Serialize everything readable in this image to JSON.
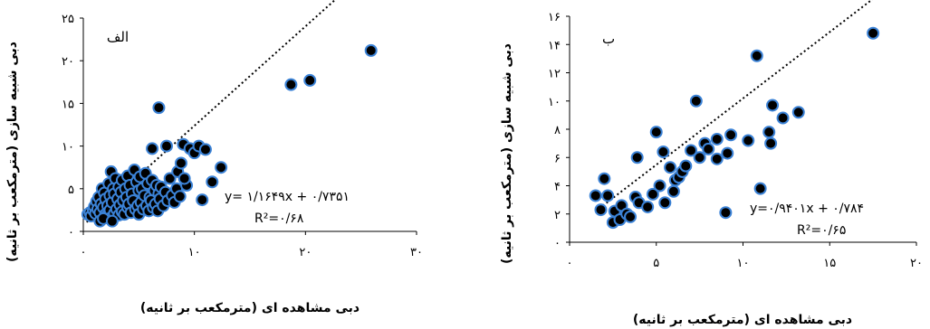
{
  "chart_data": [
    {
      "type": "scatter",
      "panel_label": "الف",
      "xlabel": "دبی مشاهده ای (مترمکعب بر ثانیه)",
      "ylabel": "دبی شبیه سازی (مترمکعب بر ثانیه)",
      "xlim": [
        0,
        30
      ],
      "ylim": [
        0,
        25
      ],
      "x_ticks": [
        0,
        10,
        20,
        30
      ],
      "y_ticks": [
        0,
        5,
        10,
        15,
        20,
        25
      ],
      "x_tick_labels": [
        "۰",
        "۱۰",
        "۲۰",
        "۳۰"
      ],
      "y_tick_labels": [
        "۰",
        "۵",
        "۱۰",
        "۱۵",
        "۲۰",
        "۲۵"
      ],
      "equation": "y= ۱/۱۶۴۹x + ۰/۷۳۵۱",
      "r2": "R²=۰/۶۸",
      "trendline": {
        "slope": 1.1649,
        "intercept": 0.7351,
        "x_range": [
          0.3,
          25.9
        ]
      },
      "points": [
        [
          0.4,
          2.0
        ],
        [
          0.6,
          2.2
        ],
        [
          0.7,
          1.8
        ],
        [
          0.9,
          2.5
        ],
        [
          1.0,
          2.9
        ],
        [
          1.1,
          2.1
        ],
        [
          1.2,
          3.5
        ],
        [
          1.3,
          2.6
        ],
        [
          1.4,
          4.0
        ],
        [
          1.5,
          2.2
        ],
        [
          1.6,
          3.2
        ],
        [
          1.7,
          5.0
        ],
        [
          1.8,
          2.8
        ],
        [
          1.9,
          4.5
        ],
        [
          2.0,
          2.0
        ],
        [
          2.0,
          3.8
        ],
        [
          2.1,
          1.8
        ],
        [
          2.2,
          3.0
        ],
        [
          2.3,
          5.6
        ],
        [
          2.4,
          2.5
        ],
        [
          2.4,
          4.2
        ],
        [
          2.5,
          7.0
        ],
        [
          2.5,
          1.6
        ],
        [
          2.6,
          3.4
        ],
        [
          2.7,
          5.0
        ],
        [
          2.8,
          2.1
        ],
        [
          2.8,
          4.4
        ],
        [
          2.9,
          6.2
        ],
        [
          3.0,
          2.6
        ],
        [
          3.1,
          3.8
        ],
        [
          3.2,
          1.9
        ],
        [
          3.2,
          5.2
        ],
        [
          3.3,
          3.1
        ],
        [
          3.4,
          4.6
        ],
        [
          3.5,
          2.3
        ],
        [
          3.5,
          6.0
        ],
        [
          3.6,
          3.6
        ],
        [
          3.7,
          2.0
        ],
        [
          3.8,
          5.0
        ],
        [
          3.9,
          4.0
        ],
        [
          4.0,
          2.8
        ],
        [
          4.0,
          6.5
        ],
        [
          4.1,
          3.2
        ],
        [
          4.2,
          5.4
        ],
        [
          4.3,
          2.2
        ],
        [
          4.4,
          4.4
        ],
        [
          4.5,
          3.6
        ],
        [
          4.6,
          7.2
        ],
        [
          4.7,
          2.6
        ],
        [
          4.8,
          5.8
        ],
        [
          4.9,
          3.0
        ],
        [
          5.0,
          4.8
        ],
        [
          5.0,
          2.0
        ],
        [
          5.1,
          6.4
        ],
        [
          5.2,
          3.4
        ],
        [
          5.3,
          5.0
        ],
        [
          5.4,
          2.6
        ],
        [
          5.5,
          4.2
        ],
        [
          5.6,
          6.8
        ],
        [
          5.7,
          3.0
        ],
        [
          5.8,
          5.6
        ],
        [
          5.9,
          2.4
        ],
        [
          6.0,
          4.0
        ],
        [
          6.1,
          3.6
        ],
        [
          6.2,
          6.0
        ],
        [
          6.3,
          2.8
        ],
        [
          6.4,
          4.8
        ],
        [
          6.5,
          3.2
        ],
        [
          6.6,
          5.4
        ],
        [
          6.7,
          2.4
        ],
        [
          6.8,
          4.4
        ],
        [
          6.9,
          3.8
        ],
        [
          7.0,
          5.2
        ],
        [
          7.2,
          3.0
        ],
        [
          7.4,
          4.6
        ],
        [
          7.6,
          3.6
        ],
        [
          7.8,
          6.2
        ],
        [
          8.0,
          4.2
        ],
        [
          8.2,
          3.4
        ],
        [
          8.4,
          5.0
        ],
        [
          6.2,
          9.7
        ],
        [
          6.8,
          14.5
        ],
        [
          7.5,
          10.0
        ],
        [
          8.5,
          7.0
        ],
        [
          8.8,
          8.0
        ],
        [
          9.0,
          10.2
        ],
        [
          9.3,
          5.4
        ],
        [
          9.6,
          9.7
        ],
        [
          10.0,
          9.2
        ],
        [
          10.4,
          10.0
        ],
        [
          10.7,
          3.7
        ],
        [
          11.0,
          9.6
        ],
        [
          12.4,
          7.5
        ],
        [
          9.1,
          6.2
        ],
        [
          8.7,
          4.1
        ],
        [
          1.5,
          1.2
        ],
        [
          1.8,
          1.5
        ],
        [
          2.6,
          1.2
        ],
        [
          11.6,
          5.8
        ],
        [
          18.7,
          17.2
        ],
        [
          20.4,
          17.7
        ],
        [
          25.9,
          21.2
        ]
      ]
    },
    {
      "type": "scatter",
      "panel_label": "ب",
      "xlabel": "دبی مشاهده ای (مترمکعب بر ثانیه)",
      "ylabel": "دبی شبیه سازی (مترمکعب بر ثانیه)",
      "xlim": [
        0,
        20
      ],
      "ylim": [
        0,
        16
      ],
      "x_ticks": [
        0,
        5,
        10,
        15,
        20
      ],
      "y_ticks": [
        0,
        2,
        4,
        6,
        8,
        10,
        12,
        14,
        16
      ],
      "x_tick_labels": [
        "۰",
        "۵",
        "۱۰",
        "۱۵",
        "۲۰"
      ],
      "y_tick_labels": [
        "۰",
        "۲",
        "۴",
        "۶",
        "۸",
        "۱۰",
        "۱۲",
        "۱۴",
        "۱۶"
      ],
      "equation": "y=۰/۹۴۰۱x + ۰/۷۸۴",
      "r2": "R²=۰/۶۵",
      "trendline": {
        "slope": 0.9401,
        "intercept": 0.784,
        "x_range": [
          1.5,
          18.0
        ]
      },
      "points": [
        [
          1.5,
          3.3
        ],
        [
          1.8,
          2.3
        ],
        [
          2.0,
          4.5
        ],
        [
          2.2,
          3.3
        ],
        [
          2.5,
          1.4
        ],
        [
          2.6,
          2.2
        ],
        [
          2.9,
          1.6
        ],
        [
          3.0,
          2.6
        ],
        [
          3.3,
          2.0
        ],
        [
          3.5,
          1.8
        ],
        [
          3.8,
          3.2
        ],
        [
          3.9,
          6.0
        ],
        [
          4.0,
          2.8
        ],
        [
          4.5,
          2.5
        ],
        [
          4.8,
          3.4
        ],
        [
          5.0,
          7.8
        ],
        [
          5.2,
          4.0
        ],
        [
          5.4,
          6.4
        ],
        [
          5.5,
          2.8
        ],
        [
          5.8,
          5.3
        ],
        [
          6.0,
          3.6
        ],
        [
          6.1,
          4.4
        ],
        [
          6.3,
          4.6
        ],
        [
          6.5,
          5.0
        ],
        [
          6.7,
          5.4
        ],
        [
          7.0,
          6.5
        ],
        [
          7.3,
          10.0
        ],
        [
          7.5,
          6.0
        ],
        [
          7.8,
          7.0
        ],
        [
          8.0,
          6.6
        ],
        [
          8.5,
          5.9
        ],
        [
          8.5,
          7.3
        ],
        [
          9.0,
          2.1
        ],
        [
          9.1,
          6.3
        ],
        [
          9.3,
          7.6
        ],
        [
          10.3,
          7.2
        ],
        [
          10.8,
          13.2
        ],
        [
          11.0,
          3.8
        ],
        [
          11.5,
          7.8
        ],
        [
          11.7,
          9.7
        ],
        [
          11.6,
          7.0
        ],
        [
          12.3,
          8.8
        ],
        [
          13.2,
          9.2
        ],
        [
          17.5,
          14.8
        ]
      ]
    }
  ]
}
